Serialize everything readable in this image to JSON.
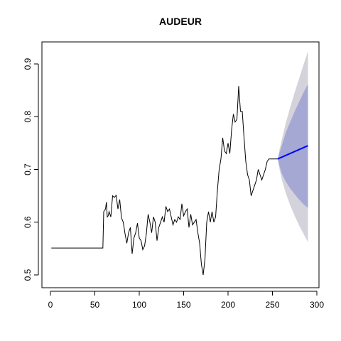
{
  "chart_data": {
    "type": "line",
    "title": "AUDEUR",
    "xlabel": "",
    "ylabel": "",
    "xlim": [
      0,
      300
    ],
    "ylim": [
      0.49,
      0.93
    ],
    "x_ticks": [
      0,
      50,
      100,
      150,
      200,
      250,
      300
    ],
    "y_ticks": [
      0.5,
      0.6,
      0.7,
      0.8,
      0.9
    ],
    "grid": false,
    "legend": "none",
    "colors": {
      "history": "#000000",
      "forecast": "#0000ff",
      "band_outer": "#d4d3dc",
      "band_inner": "#a4a8d2"
    },
    "series": [
      {
        "role": "history",
        "x": [
          1,
          10,
          20,
          30,
          40,
          50,
          59,
          60,
          62,
          63,
          64,
          65,
          66,
          68,
          70,
          72,
          74,
          76,
          78,
          80,
          82,
          84,
          86,
          88,
          90,
          92,
          94,
          96,
          98,
          100,
          102,
          104,
          106,
          108,
          110,
          112,
          114,
          116,
          118,
          120,
          122,
          124,
          126,
          128,
          130,
          132,
          134,
          136,
          138,
          140,
          142,
          144,
          146,
          148,
          150,
          152,
          154,
          156,
          158,
          160,
          162,
          164,
          166,
          168,
          170,
          172,
          174,
          176,
          178,
          180,
          182,
          184,
          186,
          188,
          190,
          192,
          194,
          196,
          198,
          200,
          202,
          204,
          206,
          208,
          210,
          212,
          214,
          216,
          218,
          220,
          222,
          224,
          226,
          228,
          230,
          232,
          234,
          236,
          238,
          240,
          242,
          244,
          246,
          248,
          250,
          252,
          254,
          256
        ],
        "y": [
          0.551,
          0.551,
          0.551,
          0.551,
          0.551,
          0.551,
          0.551,
          0.62,
          0.625,
          0.638,
          0.61,
          0.612,
          0.62,
          0.61,
          0.65,
          0.647,
          0.651,
          0.625,
          0.643,
          0.608,
          0.6,
          0.578,
          0.56,
          0.58,
          0.59,
          0.54,
          0.57,
          0.58,
          0.598,
          0.57,
          0.565,
          0.548,
          0.555,
          0.578,
          0.615,
          0.6,
          0.58,
          0.61,
          0.6,
          0.565,
          0.59,
          0.6,
          0.61,
          0.6,
          0.63,
          0.62,
          0.625,
          0.61,
          0.595,
          0.605,
          0.6,
          0.61,
          0.605,
          0.635,
          0.612,
          0.62,
          0.625,
          0.59,
          0.615,
          0.595,
          0.6,
          0.605,
          0.58,
          0.56,
          0.52,
          0.5,
          0.53,
          0.6,
          0.62,
          0.6,
          0.62,
          0.6,
          0.61,
          0.66,
          0.7,
          0.72,
          0.76,
          0.735,
          0.73,
          0.75,
          0.73,
          0.775,
          0.805,
          0.79,
          0.795,
          0.858,
          0.81,
          0.81,
          0.76,
          0.715,
          0.69,
          0.68,
          0.65,
          0.66,
          0.67,
          0.68,
          0.7,
          0.69,
          0.68,
          0.69,
          0.7,
          0.715,
          0.72,
          0.72,
          0.72,
          0.72,
          0.72,
          0.72
        ]
      },
      {
        "role": "forecast",
        "x": [
          256,
          290
        ],
        "y": [
          0.72,
          0.745
        ]
      }
    ],
    "intervals": {
      "x": [
        256,
        258,
        261,
        265,
        270,
        275,
        280,
        285,
        290
      ],
      "lower_95": [
        0.72,
        0.7,
        0.678,
        0.655,
        0.632,
        0.612,
        0.594,
        0.578,
        0.562
      ],
      "upper_95": [
        0.72,
        0.738,
        0.76,
        0.788,
        0.818,
        0.846,
        0.872,
        0.899,
        0.924
      ],
      "lower_80": [
        0.72,
        0.706,
        0.69,
        0.677,
        0.664,
        0.653,
        0.643,
        0.634,
        0.627
      ],
      "upper_80": [
        0.72,
        0.732,
        0.748,
        0.77,
        0.79,
        0.81,
        0.828,
        0.846,
        0.862
      ]
    }
  }
}
